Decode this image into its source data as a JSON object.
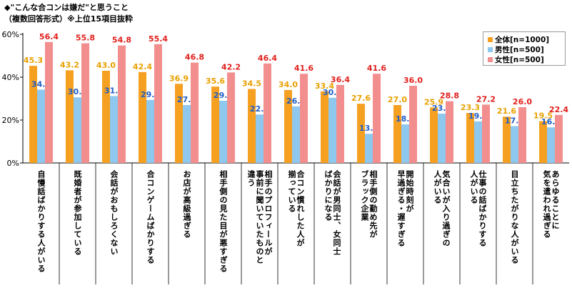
{
  "title_line1": "◆\"こんな合コンは嫌だ\"と思うこと",
  "title_line2": "（複数回答形式）※上位15項目抜粋",
  "chart_data": {
    "type": "bar",
    "ylim": [
      0,
      60
    ],
    "yticks": [
      "0%",
      "20%",
      "40%",
      "60%"
    ],
    "legend_position": "top-right",
    "grid": false,
    "categories": [
      [
        "自慢話ばかりする人がいる"
      ],
      [
        "既婚者が参加している"
      ],
      [
        "会話がおもしろくない"
      ],
      [
        "合コンゲームばかりする"
      ],
      [
        "お店が高級過ぎる"
      ],
      [
        "相手側の見た目が悪すぎる"
      ],
      [
        "相手のプロフィールが",
        "事前に聞いていたものと",
        "違う"
      ],
      [
        "合コン慣れした人が",
        "揃っている"
      ],
      [
        "会話が男同士、女同士",
        "ばかりになる"
      ],
      [
        "相手側の勤め先が",
        "ブラック企業"
      ],
      [
        "開始時刻が",
        "早過ぎる・遅すぎる"
      ],
      [
        "気合いが入り過ぎの",
        "人がいる"
      ],
      [
        "仕事の話ばかりする",
        "人がいる"
      ],
      [
        "目立ちたがりな人がいる"
      ],
      [
        "あらゆることに",
        "気を遣われ過ぎる"
      ]
    ],
    "series": [
      {
        "name": "全体[n=1000]",
        "color": "#f5a020",
        "label_color": "#e8a000",
        "values": [
          45.3,
          43.2,
          43.0,
          42.4,
          36.9,
          35.6,
          34.5,
          34.0,
          33.4,
          27.6,
          27.0,
          25.9,
          23.3,
          21.6,
          19.5
        ]
      },
      {
        "name": "男性[n=500]",
        "color": "#8fc8ee",
        "label_color": "#1f5fc8",
        "values": [
          34.2,
          30.6,
          31.2,
          29.4,
          27.0,
          29.0,
          22.6,
          26.4,
          30.4,
          13.6,
          18.0,
          23.0,
          19.4,
          17.2,
          16.6
        ]
      },
      {
        "name": "女性[n=500]",
        "color": "#f28e8e",
        "label_color": "#e0201c",
        "values": [
          56.4,
          55.8,
          54.8,
          55.4,
          46.8,
          42.2,
          46.4,
          41.6,
          36.4,
          41.6,
          36.0,
          28.8,
          27.2,
          26.0,
          22.4
        ]
      }
    ]
  }
}
